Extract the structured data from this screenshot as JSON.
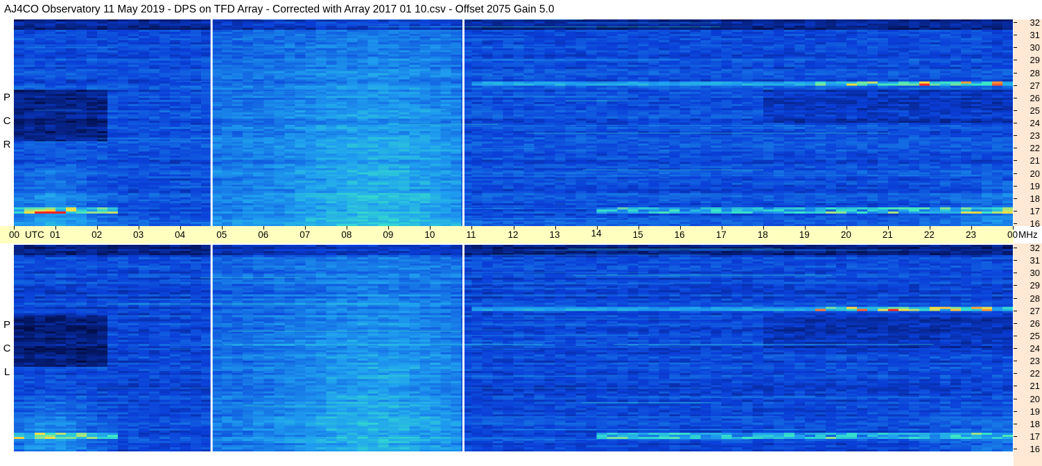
{
  "header": {
    "title": "AJ4CO Observatory  11 May 2019  -  DPS on TFD Array  -  Corrected with Array 2017 01 10.csv  -  Offset 2075  Gain 5.0"
  },
  "colors": {
    "low": "#000020",
    "mid_low": "#0a3ed8",
    "mid": "#1f9ff0",
    "mid_high": "#38e6c8",
    "high": "#ffe040",
    "peak": "#ff2020",
    "time_axis_bg": "#ffffc0",
    "freq_axis_bg": "#ffe8d4"
  },
  "panels": {
    "top": {
      "label_letters": [
        "R",
        "C",
        "P"
      ]
    },
    "bottom": {
      "label_letters": [
        "L",
        "C",
        "P"
      ]
    }
  },
  "time_axis": {
    "utc_label": "UTC",
    "mhz_label": "MHz",
    "hours": [
      "00",
      "01",
      "02",
      "03",
      "04",
      "05",
      "06",
      "07",
      "08",
      "09",
      "10",
      "11",
      "12",
      "13",
      "14",
      "15",
      "16",
      "17",
      "18",
      "19",
      "20",
      "21",
      "22",
      "23",
      "00"
    ]
  },
  "chart_data": {
    "type": "heatmap",
    "title": "AJ4CO Observatory  11 May 2019  -  DPS on TFD Array  -  Corrected with Array 2017 01 10.csv  -  Offset 2075  Gain 5.0",
    "xlabel": "UTC",
    "ylabel": "MHz",
    "xlim": [
      0,
      24
    ],
    "ylim": [
      16,
      32
    ],
    "x_ticks": [
      "00",
      "01",
      "02",
      "03",
      "04",
      "05",
      "06",
      "07",
      "08",
      "09",
      "10",
      "11",
      "12",
      "13",
      "14",
      "15",
      "16",
      "17",
      "18",
      "19",
      "20",
      "21",
      "22",
      "23",
      "00"
    ],
    "y_ticks": [
      32,
      31,
      30,
      29,
      28,
      27,
      26,
      25,
      24,
      23,
      22,
      21,
      20,
      19,
      18,
      17,
      16
    ],
    "series": [
      {
        "name": "RCP"
      },
      {
        "name": "LCP"
      }
    ],
    "data_gaps_utc": [
      4.75,
      10.8
    ]
  }
}
